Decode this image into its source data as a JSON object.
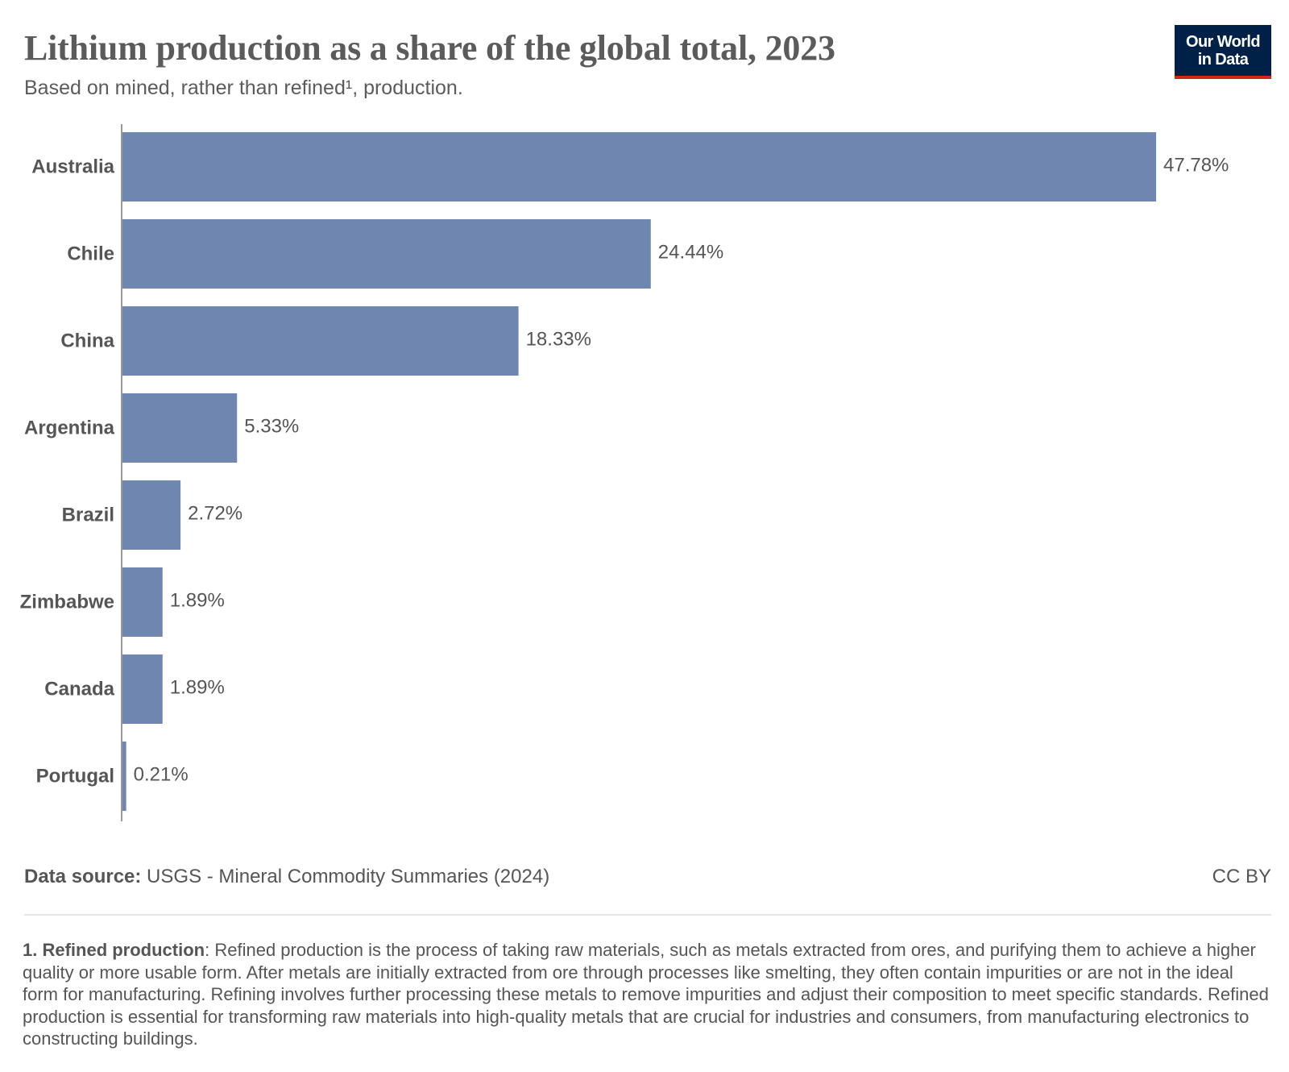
{
  "header": {
    "title": "Lithium production as a share of the global total, 2023",
    "subtitle": "Based on mined, rather than refined¹, production."
  },
  "logo": {
    "line1": "Our World",
    "line2": "in Data",
    "bg_color": "#002147",
    "accent_color": "#ce261e"
  },
  "chart_data": {
    "type": "bar",
    "orientation": "horizontal",
    "title": "Lithium production as a share of the global total, 2023",
    "subtitle": "Based on mined, rather than refined¹, production.",
    "categories": [
      "Australia",
      "Chile",
      "China",
      "Argentina",
      "Brazil",
      "Zimbabwe",
      "Canada",
      "Portugal"
    ],
    "values": [
      47.78,
      24.44,
      18.33,
      5.33,
      2.72,
      1.89,
      1.89,
      0.21
    ],
    "value_labels": [
      "47.78%",
      "24.44%",
      "18.33%",
      "5.33%",
      "2.72%",
      "1.89%",
      "1.89%",
      "0.21%"
    ],
    "unit": "%",
    "xlim": [
      0,
      47.78
    ],
    "grid": false,
    "bar_color": "#6f87b0"
  },
  "footer": {
    "source_label": "Data source:",
    "source_text": " USGS - Mineral Commodity Summaries (2024)",
    "license": "CC BY"
  },
  "footnote": {
    "term": "1. Refined production",
    "text": ": Refined production is the process of taking raw materials, such as metals extracted from ores, and purifying them to achieve a higher quality or more usable form. After metals are initially extracted from ore through processes like smelting, they often contain impurities or are not in the ideal form for manufacturing. Refining involves further processing these metals to remove impurities and adjust their composition to meet specific standards. Refined production is essential for transforming raw materials into high-quality metals that are crucial for industries and consumers, from manufacturing electronics to constructing buildings."
  }
}
